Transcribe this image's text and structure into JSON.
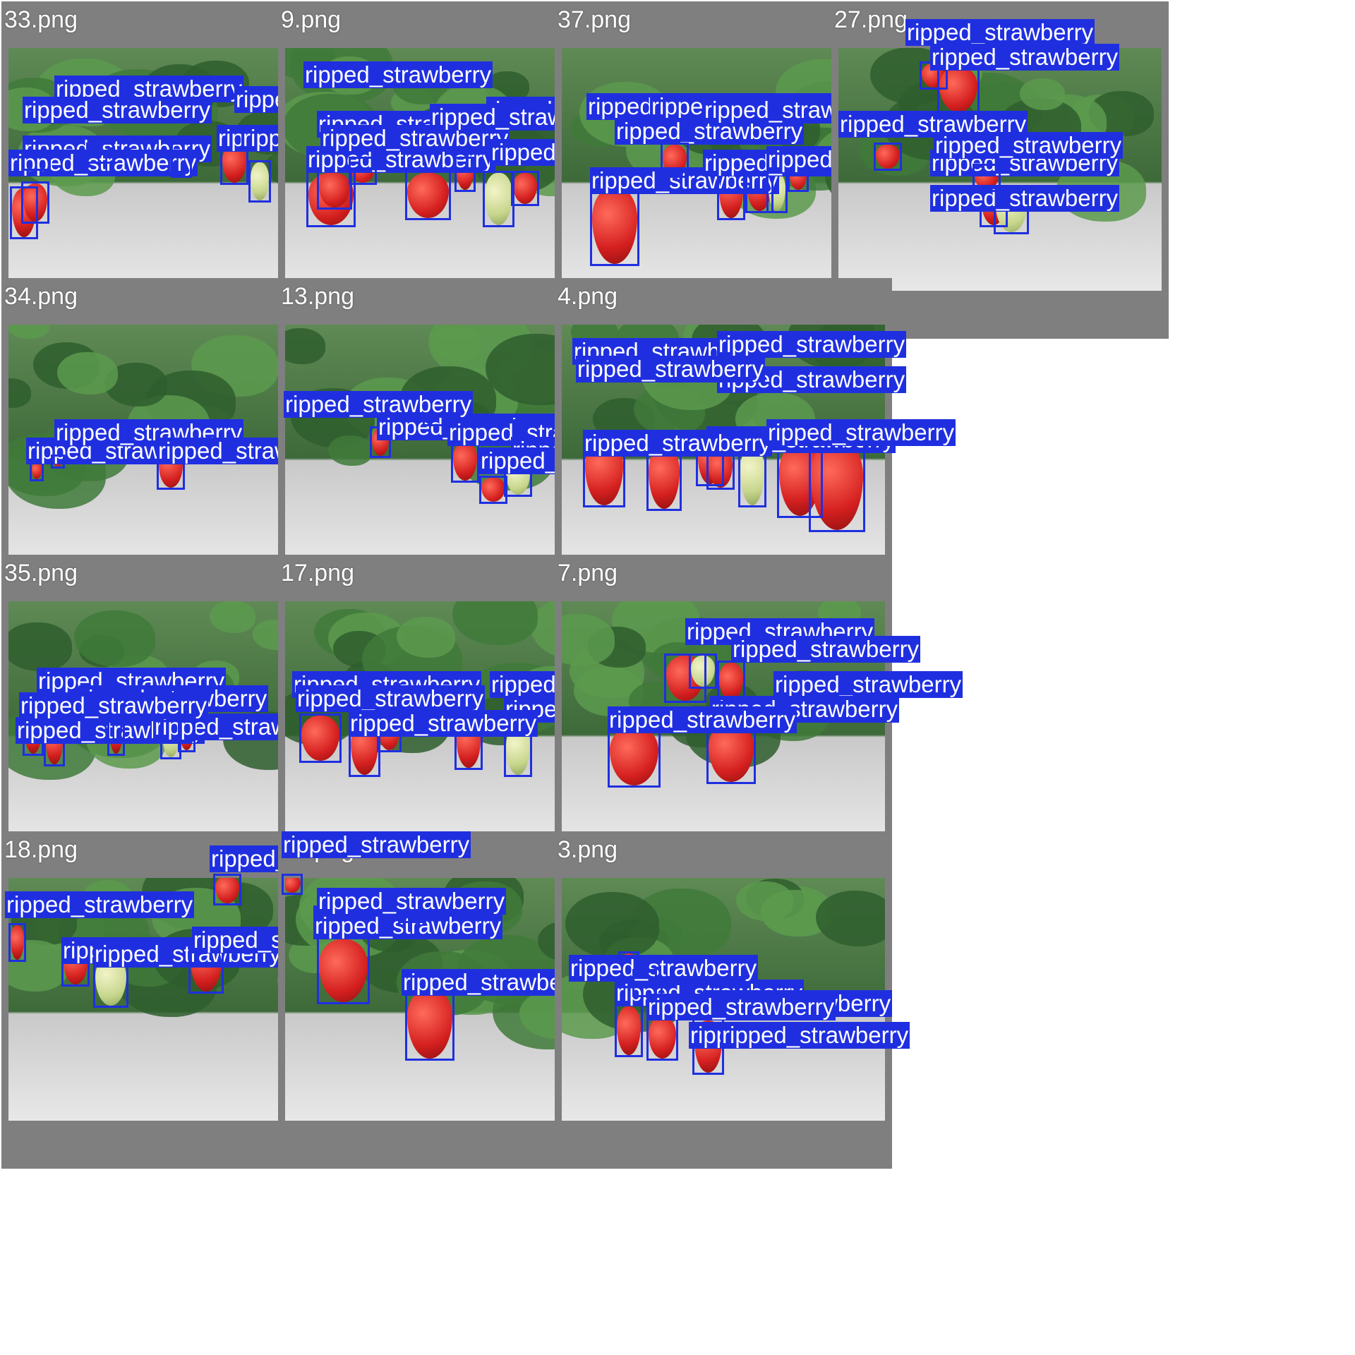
{
  "tiles": [
    {
      "file": "33.png",
      "labels": [
        "ripped_strawberry",
        "ripped_strawberry",
        "ripped_strawberry",
        "ripped_strawberry",
        "ripped_strawberry",
        "ripped_strawberry",
        "ripped_strawberry"
      ]
    },
    {
      "file": "9.png",
      "labels": [
        "ripped_strawberry",
        "ripped_strawberry",
        "ripped_strawberry",
        "ripped_strawberry",
        "ripped_strawberry",
        "ripped_strawberry",
        "ripped_strawberry"
      ]
    },
    {
      "file": "37.png",
      "labels": [
        "ripped_strawberry",
        "ripped_strawberry",
        "ripped_strawberry",
        "ripped_strawberry",
        "ripped_strawberry",
        "ripped_strawberry",
        "ripped_strawberry"
      ]
    },
    {
      "file": "27.png",
      "labels": [
        "ripped_strawberry",
        "ripped_strawberry",
        "ripped_strawberry",
        "ripped_strawberry",
        "ripped_strawberry",
        "ripped_strawberry"
      ]
    },
    {
      "file": "34.png",
      "labels": [
        "ripped_strawberry",
        "ripped_strawberry",
        "ripped_strawberry"
      ]
    },
    {
      "file": "13.png",
      "labels": [
        "ripped_strawberry",
        "ripped_strawberry",
        "ripped_strawberry",
        "ripped_strawberry",
        "ripped_strawberry"
      ]
    },
    {
      "file": "4.png",
      "labels": [
        "ripped_strawberry",
        "ripped_strawberry",
        "ripped_strawberry",
        "ripped_strawberry",
        "ripped_strawberry",
        "ripped_strawberry",
        "ripped_strawberry"
      ]
    },
    {
      "file": "35.png",
      "labels": [
        "ripped_strawberry",
        "ripped_strawberry",
        "ripped_strawberry",
        "ripped_strawberry",
        "ripped_strawberry"
      ]
    },
    {
      "file": "17.png",
      "labels": [
        "ripped_strawberry",
        "ripped_strawberry",
        "ripped_strawberry",
        "ripped_strawberry",
        "ripped_strawberry",
        "ripped_strawberry"
      ]
    },
    {
      "file": "7.png",
      "labels": [
        "ripped_strawberry",
        "ripped_strawberry",
        "ripped_strawberry",
        "ripped_strawberry",
        "ripped_strawberry"
      ]
    },
    {
      "file": "18.png",
      "labels": [
        "ripped_strawberry",
        "ripped_strawberry",
        "ripped_strawberry",
        "ripped_strawberry",
        "ripped_strawberry",
        "ripped_strawberry"
      ]
    },
    {
      "file": "25.png",
      "labels": [
        "ripped_strawberry",
        "ripped_strawberry",
        "ripped_strawberry",
        "ripped_strawberry",
        "ripped_strawberry"
      ]
    },
    {
      "file": "3.png",
      "labels": [
        "ripped_strawberry",
        "ripped_strawberry",
        "ripped_strawberry",
        "ripped_strawberry",
        "ripped_strawberry",
        "ripped_strawberry"
      ]
    }
  ],
  "colors": {
    "box": "#1f2fe0",
    "tile_bg": "#7f7f7f",
    "text": "#ffffff"
  }
}
